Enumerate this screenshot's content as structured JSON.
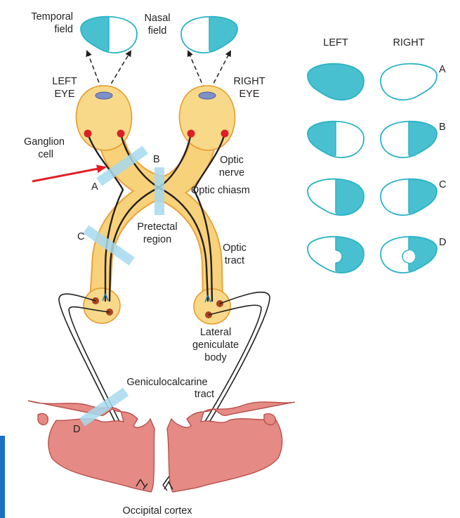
{
  "colors": {
    "field_fill": "#49c0d0",
    "field_outline": "#2ab3c6",
    "eye_fill": "#f8d98a",
    "eye_border": "#e89a2a",
    "ganglion_cell": "#d92027",
    "lesion_bar": "#a6d9ee",
    "cortex": "#e58a84",
    "pointer_arrow": "#e31e24",
    "edge_accent": "#1e6fc1"
  },
  "labels": {
    "temporal_field_1": "Temporal",
    "temporal_field_2": "field",
    "nasal_field_1": "Nasal",
    "nasal_field_2": "field",
    "left_eye_1": "LEFT",
    "left_eye_2": "EYE",
    "right_eye_1": "RIGHT",
    "right_eye_2": "EYE",
    "ganglion_1": "Ganglion",
    "ganglion_2": "cell",
    "optic_nerve_1": "Optic",
    "optic_nerve_2": "nerve",
    "optic_chiasm": "Optic chiasm",
    "pretectal_1": "Pretectal",
    "pretectal_2": "region",
    "optic_tract_1": "Optic",
    "optic_tract_2": "tract",
    "lgb_1": "Lateral",
    "lgb_2": "geniculate",
    "lgb_3": "body",
    "gct_1": "Geniculocalcarine",
    "gct_2": "tract",
    "occipital": "Occipital cortex",
    "lesion_a": "A",
    "lesion_b": "B",
    "lesion_c": "C",
    "lesion_d": "D"
  },
  "fields_table": {
    "col_left": "LEFT",
    "col_right": "RIGHT",
    "rows": [
      {
        "label": "A",
        "left": "full",
        "right": "none"
      },
      {
        "label": "B",
        "left": "temporal-half",
        "right": "temporal-half"
      },
      {
        "label": "C",
        "left": "nasal-half",
        "right": "temporal-half"
      },
      {
        "label": "D",
        "left": "nasal-half-macular-sparing",
        "right": "temporal-half-macular-sparing"
      }
    ]
  }
}
